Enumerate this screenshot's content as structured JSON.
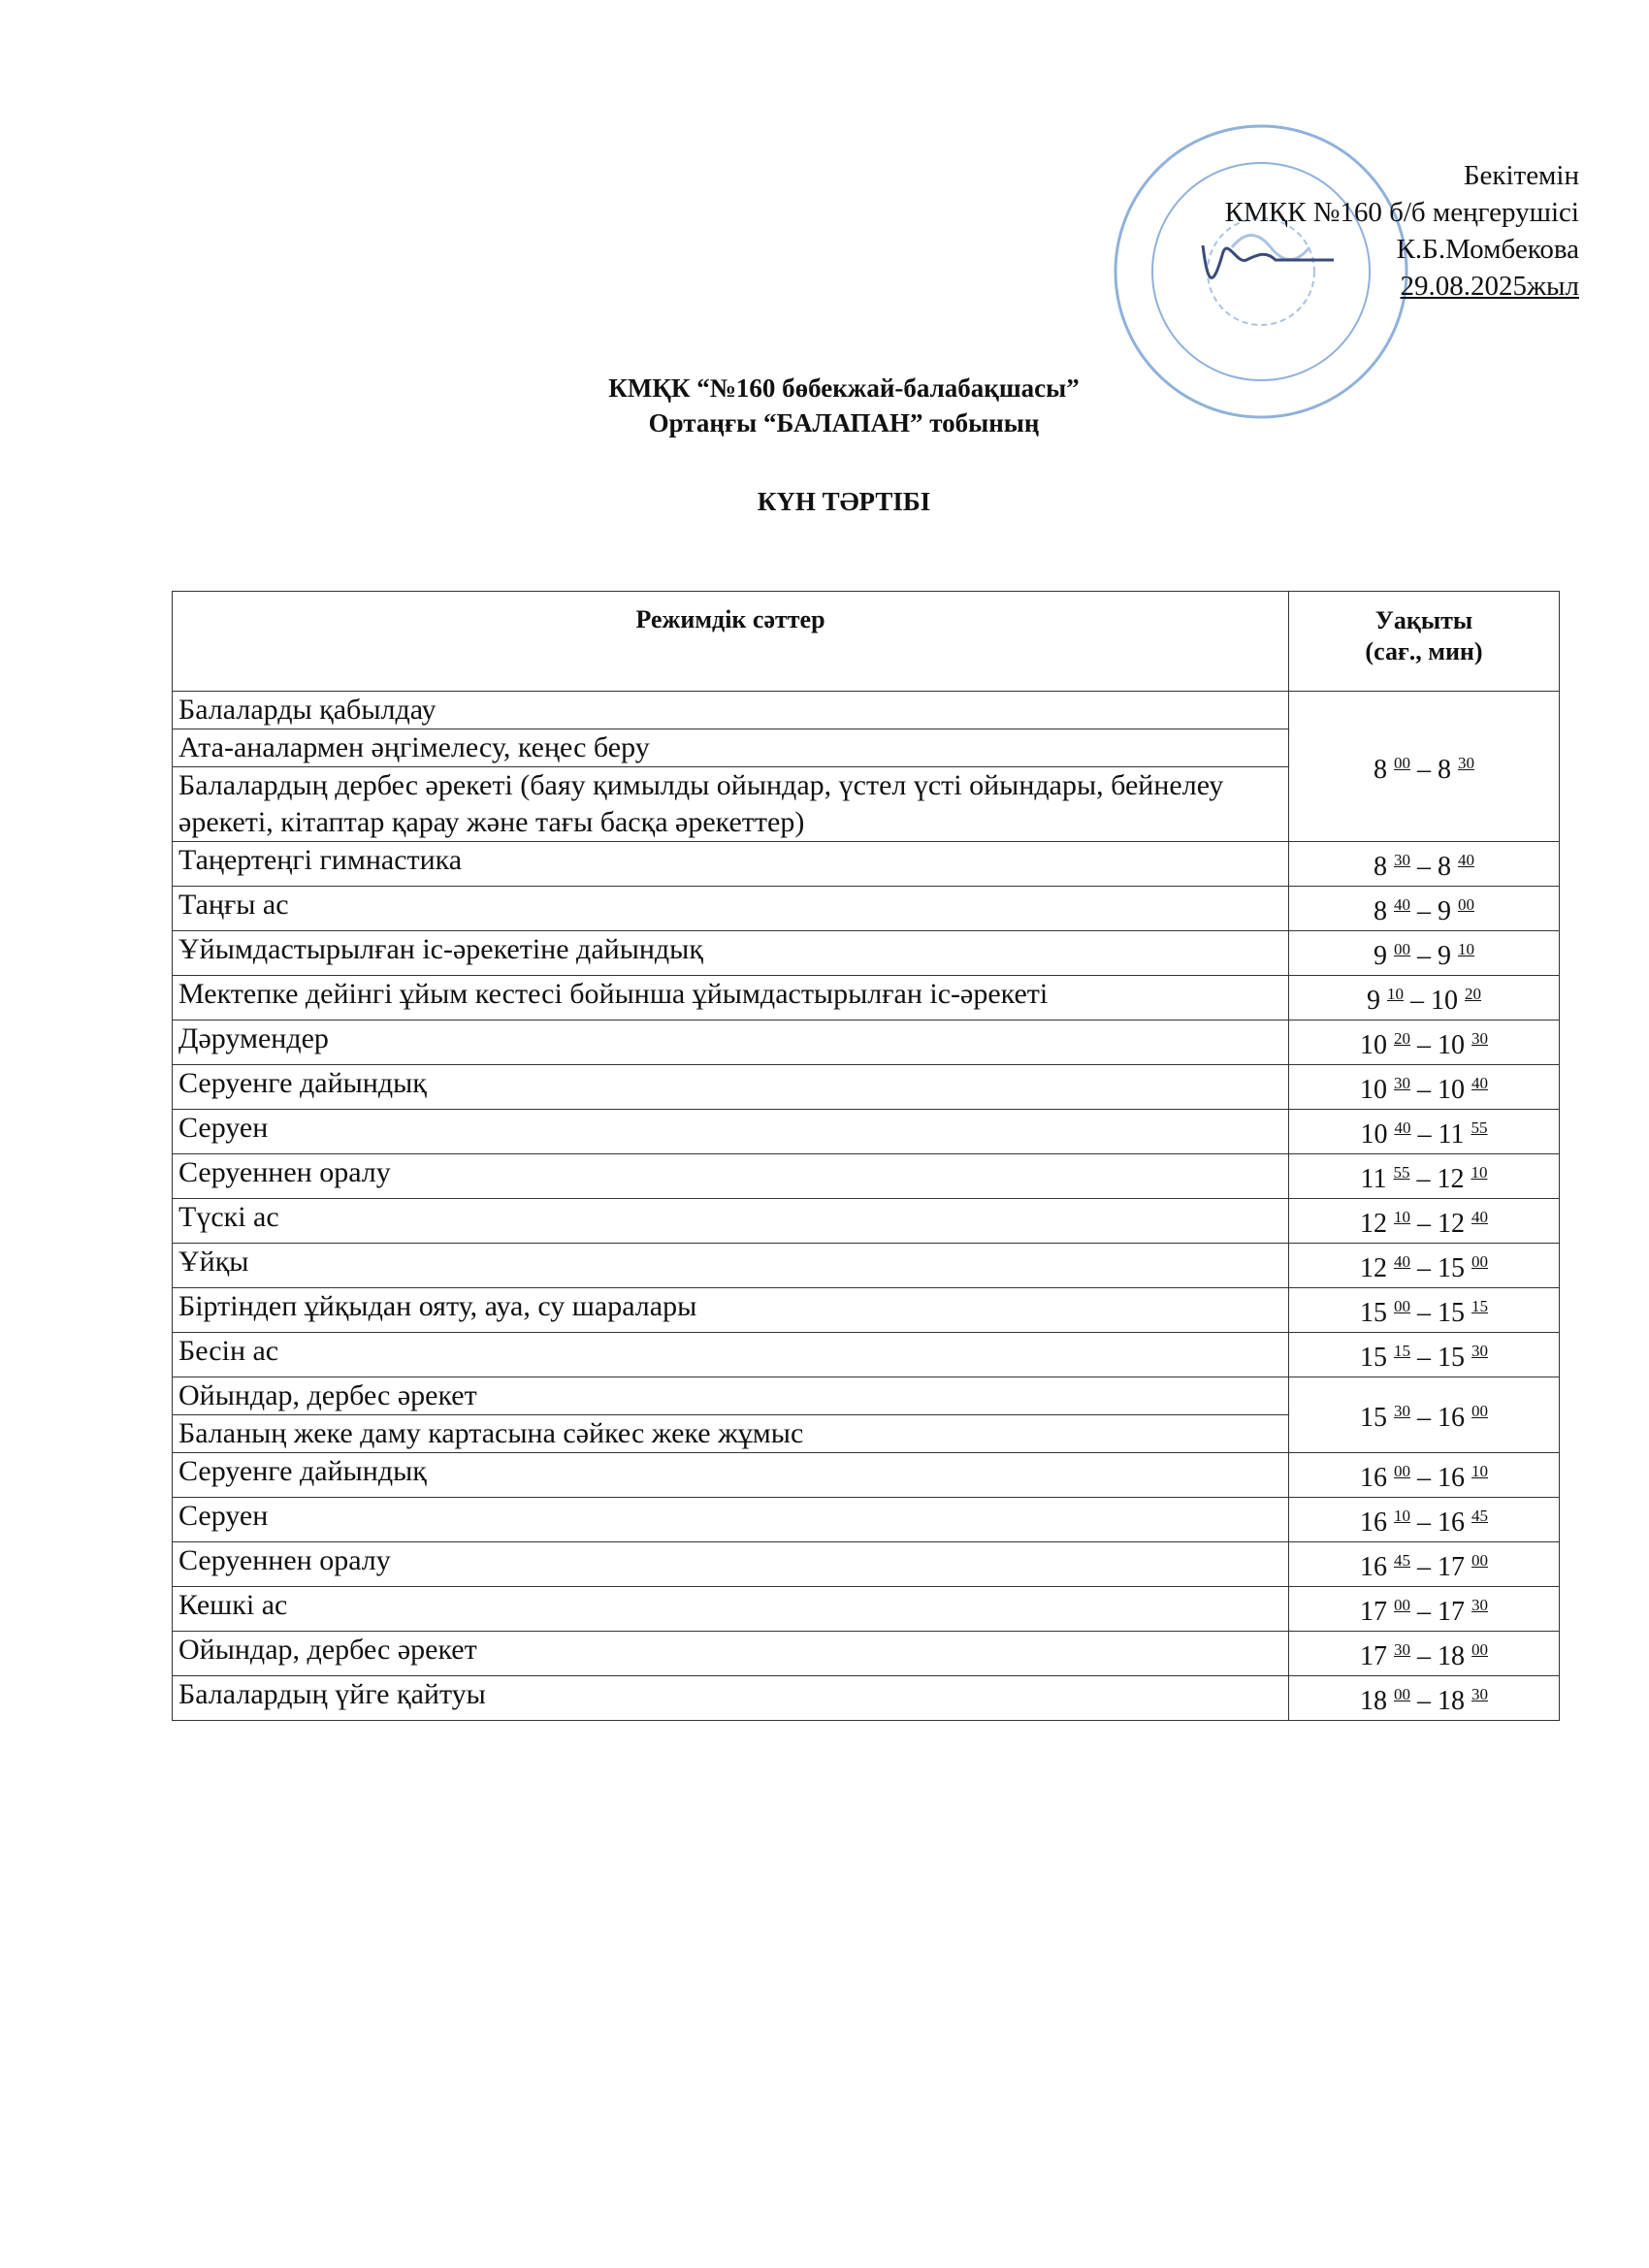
{
  "approval": {
    "lines": [
      "Бекітемін",
      "КМҚК №160 б/б меңгерушісі",
      "К.Б.Момбекова",
      "29.08.2025жыл"
    ]
  },
  "header": {
    "title_lines": [
      "КМҚК “№160 бөбекжай-балабақшасы”",
      "Ортаңғы  “БАЛАПАН”  тобының"
    ],
    "heading": "КҮН ТӘРТІБІ"
  },
  "table": {
    "columns": [
      "Режимдік сәттер",
      "Уақыты",
      "(сағ., мин)"
    ],
    "groups": [
      {
        "activities": [
          "Балаларды қабылдау",
          "Ата-аналармен әңгімелесу, кеңес беру",
          "Балалардың дербес әрекеті (баяу қимылды ойындар, үстел үсті ойындары, бейнелеу әрекеті, кітаптар қарау және тағы басқа әрекеттер)"
        ],
        "time": [
          "8",
          "00",
          "–",
          "8",
          "30"
        ]
      },
      {
        "activities": [
          "Таңертеңгі гимнастика"
        ],
        "time": [
          "8",
          "30",
          "–",
          "8",
          "40"
        ]
      },
      {
        "activities": [
          "Таңғы ас"
        ],
        "time": [
          "8",
          "40",
          "–",
          "9",
          "00"
        ]
      },
      {
        "activities": [
          "Ұйымдастырылған іс-әрекетіне дайындық"
        ],
        "time": [
          "9",
          "00",
          "–",
          "9",
          "10"
        ]
      },
      {
        "activities": [
          "Мектепке дейінгі ұйым кестесі  бойынша  ұйымдастырылған іс-әрекеті"
        ],
        "time": [
          "9",
          "10",
          "–",
          "10",
          "20"
        ]
      },
      {
        "activities": [
          "Дәрумендер"
        ],
        "time": [
          "10",
          "20",
          "–",
          "10",
          "30"
        ]
      },
      {
        "activities": [
          "Серуенге дайындық"
        ],
        "time": [
          "10",
          "30",
          "–",
          "10",
          "40"
        ]
      },
      {
        "activities": [
          "Серуен"
        ],
        "time": [
          "10",
          "40",
          "–",
          "11",
          "55"
        ]
      },
      {
        "activities": [
          "Серуеннен оралу"
        ],
        "time": [
          "11",
          "55",
          "–",
          "12",
          "10"
        ]
      },
      {
        "activities": [
          "Түскі ас"
        ],
        "time": [
          "12",
          "10",
          "–",
          "12",
          "40"
        ]
      },
      {
        "activities": [
          "Ұйқы"
        ],
        "time": [
          "12",
          "40",
          "–",
          "15",
          "00"
        ]
      },
      {
        "activities": [
          "Біртіндеп ұйқыдан ояту, ауа, су шаралары"
        ],
        "time": [
          "15",
          "00",
          "–",
          "15",
          "15"
        ]
      },
      {
        "activities": [
          "Бесін ас"
        ],
        "time": [
          "15",
          "15",
          "–",
          "15",
          "30"
        ]
      },
      {
        "activities": [
          "Ойындар, дербес әрекет",
          "Баланың жеке даму картасына сәйкес жеке жұмыс"
        ],
        "time": [
          "15",
          "30",
          "–",
          "16",
          "00"
        ]
      },
      {
        "activities": [
          "Серуенге дайындық"
        ],
        "time": [
          "16",
          "00",
          "–",
          "16",
          "10"
        ]
      },
      {
        "activities": [
          "Серуен"
        ],
        "time": [
          "16",
          "10",
          "–",
          "16",
          "45"
        ]
      },
      {
        "activities": [
          "Серуеннен оралу"
        ],
        "time": [
          "16",
          "45",
          "–",
          "17",
          "00"
        ]
      },
      {
        "activities": [
          "Кешкі ас"
        ],
        "time": [
          "17",
          "00",
          "–",
          "17",
          "30"
        ]
      },
      {
        "activities": [
          "Ойындар, дербес әрекет"
        ],
        "time": [
          "17",
          "30",
          "–",
          "18",
          "00"
        ]
      },
      {
        "activities": [
          "Балалардың үйге қайтуы"
        ],
        "time": [
          "18",
          "00",
          "–",
          "18",
          "30"
        ]
      }
    ]
  }
}
